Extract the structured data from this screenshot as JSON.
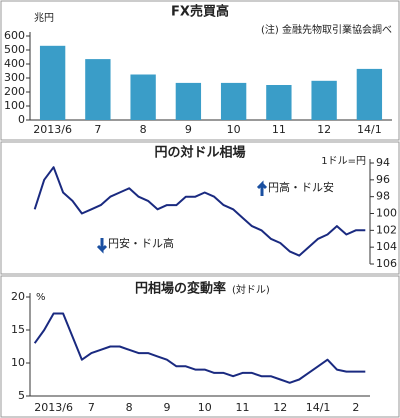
{
  "chart_data": [
    {
      "type": "bar",
      "title": "FX売買高",
      "unit": "兆円",
      "note": "(注) 金融先物取引業協会調べ",
      "categories": [
        "2013/6",
        "7",
        "8",
        "9",
        "10",
        "11",
        "12",
        "14/1"
      ],
      "values": [
        530,
        435,
        325,
        265,
        265,
        250,
        280,
        365
      ],
      "color": "#3a9dc8",
      "ylim": [
        0,
        600
      ],
      "yticks": [
        0,
        100,
        200,
        300,
        400,
        500,
        600
      ],
      "y_axis_side": "left",
      "grid": false
    },
    {
      "type": "line",
      "title": "円の対ドル相場",
      "unit": "1ドル=円",
      "annotations": [
        "円高・ドル安",
        "円安・ドル高"
      ],
      "values": [
        99.5,
        96,
        94.5,
        97.5,
        98.5,
        100,
        99.5,
        99,
        98,
        97.5,
        97,
        98,
        98.5,
        99.5,
        99,
        99,
        98,
        98,
        97.5,
        98,
        99,
        99.5,
        100.5,
        101.5,
        102,
        103,
        103.5,
        104.5,
        105,
        104,
        103,
        102.5,
        101.5,
        102.5,
        102,
        102
      ],
      "color": "#1a2a80",
      "ylim": [
        106,
        94
      ],
      "yticks": [
        94,
        96,
        98,
        100,
        102,
        104,
        106
      ],
      "y_axis_side": "right",
      "grid": false
    },
    {
      "type": "line",
      "title": "円相場の変動率",
      "subtitle": "(対ドル)",
      "unit": "%",
      "categories": [
        null,
        null,
        "2013/6",
        null,
        null,
        null,
        "7",
        null,
        null,
        null,
        "8",
        null,
        null,
        null,
        "9",
        null,
        null,
        null,
        "10",
        null,
        null,
        null,
        "11",
        null,
        null,
        null,
        "12",
        null,
        null,
        null,
        "14/1",
        null,
        null,
        null,
        "2",
        null
      ],
      "values": [
        13,
        15,
        17.5,
        17.5,
        14,
        10.5,
        11.5,
        12,
        12.5,
        12.5,
        12,
        11.5,
        11.5,
        11,
        10.5,
        9.5,
        9.5,
        9,
        9,
        8.5,
        8.5,
        8,
        8.5,
        8.5,
        8,
        8,
        7.5,
        7,
        7.5,
        8.5,
        9.5,
        10.5,
        9,
        8.7,
        8.7,
        8.7
      ],
      "color": "#1a2a80",
      "ylim": [
        5,
        20
      ],
      "yticks": [
        5,
        10,
        15,
        20
      ],
      "y_axis_side": "left",
      "grid": false
    }
  ]
}
